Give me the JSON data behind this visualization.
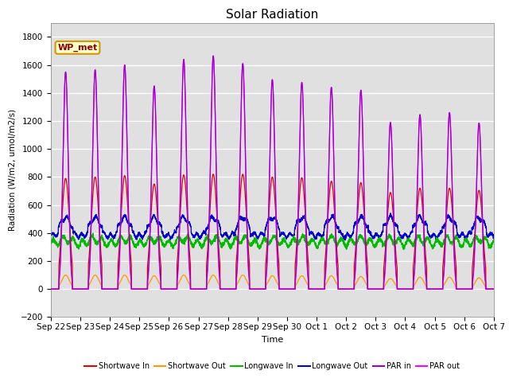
{
  "title": "Solar Radiation",
  "ylabel": "Radiation (W/m2, umol/m2/s)",
  "xlabel": "Time",
  "ylim": [
    -200,
    1900
  ],
  "yticks": [
    -200,
    0,
    200,
    400,
    600,
    800,
    1000,
    1200,
    1400,
    1600,
    1800
  ],
  "x_labels": [
    "Sep 22",
    "Sep 23",
    "Sep 24",
    "Sep 25",
    "Sep 26",
    "Sep 27",
    "Sep 28",
    "Sep 29",
    "Sep 30",
    "Oct 1",
    "Oct 2",
    "Oct 3",
    "Oct 4",
    "Oct 5",
    "Oct 6",
    "Oct 7"
  ],
  "annotation": "WP_met",
  "bg_color": "#e0e0e0",
  "colors": {
    "shortwave_in": "#dd0000",
    "shortwave_out": "#ff9900",
    "longwave_in": "#00bb00",
    "longwave_out": "#0000cc",
    "par_in": "#9900cc",
    "par_out": "#ff00ff"
  },
  "legend": [
    {
      "label": "Shortwave In",
      "color": "#dd0000"
    },
    {
      "label": "Shortwave Out",
      "color": "#ff9900"
    },
    {
      "label": "Longwave In",
      "color": "#00bb00"
    },
    {
      "label": "Longwave Out",
      "color": "#0000cc"
    },
    {
      "label": "PAR in",
      "color": "#9900cc"
    },
    {
      "label": "PAR out",
      "color": "#ff00ff"
    }
  ],
  "par_in_peaks": [
    1550,
    1565,
    1600,
    1450,
    1640,
    1665,
    1610,
    1495,
    1475,
    1440,
    1420,
    1190,
    1245,
    1260,
    1185
  ],
  "par_out_peaks": [
    1550,
    1565,
    1600,
    1450,
    1640,
    1665,
    1610,
    1495,
    1475,
    1440,
    1420,
    1190,
    1245,
    1260,
    1185
  ],
  "sw_in_peaks": [
    790,
    800,
    810,
    750,
    815,
    820,
    820,
    800,
    795,
    770,
    760,
    690,
    720,
    720,
    705
  ],
  "sw_out_peaks": [
    100,
    100,
    100,
    95,
    100,
    100,
    100,
    95,
    95,
    95,
    90,
    75,
    85,
    85,
    80
  ],
  "lw_in_base": 340,
  "lw_out_base": 400
}
